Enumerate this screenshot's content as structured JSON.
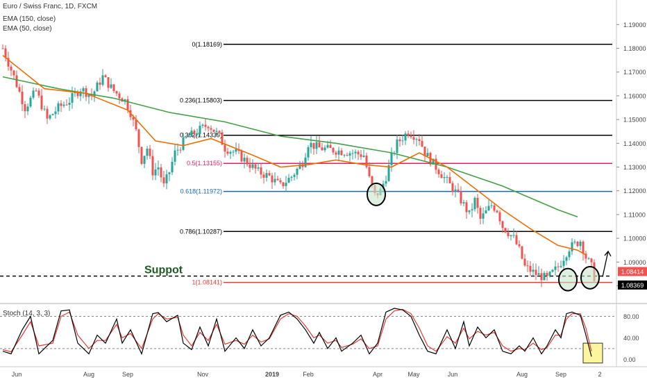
{
  "header": {
    "symbol_label": "Euro / Swiss Franc, 1D, FXCM",
    "ema150_label": "EMA (150, close)",
    "ema50_label": "EMA (50, close)",
    "stoch_label": "Stoch (14, 3, 3)"
  },
  "colors": {
    "candle_up": "#26a69a",
    "candle_down": "#ef5350",
    "ema150": "#43a047",
    "ema50": "#ef6c00",
    "fib_black": "#000000",
    "fib_pink": "#e91e63",
    "fib_blue": "#1565c0",
    "support_red": "#e53935",
    "stoch_k": "#000000",
    "stoch_d": "#e53935",
    "highlight_box": "#fff59d",
    "circle_fill": "#c8e6c9",
    "price_badge_red": "#ef5350",
    "price_badge_black": "#000000"
  },
  "annotations": {
    "support_label": "Suppot"
  },
  "chart_data": [
    {
      "type": "line",
      "title": "Euro / Swiss Franc, 1D, FXCM",
      "x_ticks": [
        "Jun",
        "Aug",
        "Sep",
        "Nov",
        "2019",
        "Feb",
        "Apr",
        "May",
        "Jun",
        "Aug",
        "Sep",
        "2"
      ],
      "y_ticks": [
        "1.19000",
        "1.18000",
        "1.17000",
        "1.16000",
        "1.15000",
        "1.14000",
        "1.13000",
        "1.12000",
        "1.11000",
        "1.10000",
        "1.09000",
        "1.08000"
      ],
      "ylim": [
        1.074,
        1.198
      ],
      "price_badges": [
        "1.08414",
        "1.08369"
      ],
      "fib_levels": [
        {
          "label": "0(1.18169)",
          "value": 1.18169,
          "color": "black"
        },
        {
          "label": "0.236(1.15803)",
          "value": 1.15803,
          "color": "black"
        },
        {
          "label": "0.382(1.14339)",
          "value": 1.14339,
          "color": "black"
        },
        {
          "label": "0.5(1.13155)",
          "value": 1.13155,
          "color": "pink"
        },
        {
          "label": "0.618(1.11972)",
          "value": 1.11972,
          "color": "blue"
        },
        {
          "label": "0.786(1.10287)",
          "value": 1.10287,
          "color": "black"
        },
        {
          "label": "1(1.08141)",
          "value": 1.08141,
          "color": "red"
        }
      ],
      "support_level": 1.0841,
      "series": [
        {
          "type": "candlestick",
          "close_path": [
            [
              0,
              1.18
            ],
            [
              4,
              1.168
            ],
            [
              8,
              1.155
            ],
            [
              12,
              1.162
            ],
            [
              16,
              1.15
            ],
            [
              20,
              1.155
            ],
            [
              24,
              1.158
            ],
            [
              28,
              1.163
            ],
            [
              32,
              1.16
            ],
            [
              36,
              1.168
            ],
            [
              40,
              1.162
            ],
            [
              44,
              1.158
            ],
            [
              46,
              1.153
            ],
            [
              48,
              1.145
            ],
            [
              50,
              1.133
            ],
            [
              52,
              1.138
            ],
            [
              54,
              1.128
            ],
            [
              56,
              1.13
            ],
            [
              58,
              1.122
            ],
            [
              60,
              1.128
            ],
            [
              62,
              1.136
            ],
            [
              66,
              1.142
            ],
            [
              70,
              1.145
            ],
            [
              74,
              1.148
            ],
            [
              78,
              1.143
            ],
            [
              80,
              1.138
            ],
            [
              84,
              1.136
            ],
            [
              88,
              1.132
            ],
            [
              92,
              1.128
            ],
            [
              96,
              1.126
            ],
            [
              100,
              1.122
            ],
            [
              104,
              1.126
            ],
            [
              108,
              1.132
            ],
            [
              110,
              1.14
            ],
            [
              114,
              1.138
            ],
            [
              120,
              1.137
            ],
            [
              126,
              1.136
            ],
            [
              130,
              1.135
            ],
            [
              132,
              1.125
            ],
            [
              134,
              1.118
            ],
            [
              136,
              1.12
            ],
            [
              138,
              1.126
            ],
            [
              140,
              1.134
            ],
            [
              142,
              1.14
            ],
            [
              146,
              1.145
            ],
            [
              150,
              1.142
            ],
            [
              152,
              1.136
            ],
            [
              156,
              1.13
            ],
            [
              160,
              1.124
            ],
            [
              164,
              1.118
            ],
            [
              168,
              1.11
            ],
            [
              170,
              1.116
            ],
            [
              172,
              1.108
            ],
            [
              176,
              1.114
            ],
            [
              178,
              1.112
            ],
            [
              180,
              1.105
            ],
            [
              184,
              1.1
            ],
            [
              186,
              1.095
            ],
            [
              188,
              1.088
            ],
            [
              192,
              1.085
            ],
            [
              196,
              1.083
            ],
            [
              200,
              1.088
            ],
            [
              204,
              1.096
            ],
            [
              208,
              1.099
            ],
            [
              210,
              1.092
            ],
            [
              212,
              1.088
            ],
            [
              213,
              1.0837
            ]
          ]
        },
        {
          "name": "EMA (150, close)",
          "points": [
            [
              0,
              1.168
            ],
            [
              20,
              1.163
            ],
            [
              40,
              1.159
            ],
            [
              60,
              1.153
            ],
            [
              80,
              1.149
            ],
            [
              100,
              1.143
            ],
            [
              120,
              1.14
            ],
            [
              140,
              1.136
            ],
            [
              160,
              1.13
            ],
            [
              180,
              1.122
            ],
            [
              200,
              1.112
            ],
            [
              207,
              1.109
            ]
          ]
        },
        {
          "name": "EMA (50, close)",
          "points": [
            [
              0,
              1.177
            ],
            [
              15,
              1.163
            ],
            [
              30,
              1.161
            ],
            [
              45,
              1.154
            ],
            [
              55,
              1.141
            ],
            [
              65,
              1.139
            ],
            [
              75,
              1.142
            ],
            [
              90,
              1.135
            ],
            [
              100,
              1.13
            ],
            [
              110,
              1.131
            ],
            [
              120,
              1.133
            ],
            [
              130,
              1.131
            ],
            [
              140,
              1.13
            ],
            [
              150,
              1.136
            ],
            [
              160,
              1.13
            ],
            [
              170,
              1.121
            ],
            [
              180,
              1.112
            ],
            [
              190,
              1.104
            ],
            [
              200,
              1.097
            ],
            [
              207,
              1.095
            ],
            [
              210,
              1.093
            ]
          ]
        }
      ]
    },
    {
      "type": "line",
      "title": "Stoch (14, 3, 3)",
      "y_ticks": [
        "80.00",
        "40.00",
        "0.00"
      ],
      "ylim": [
        -10,
        100
      ],
      "overbought": 80,
      "oversold": 20,
      "series": [
        {
          "name": "%K",
          "points": [
            [
              0,
              15
            ],
            [
              3,
              10
            ],
            [
              7,
              55
            ],
            [
              10,
              80
            ],
            [
              13,
              10
            ],
            [
              18,
              35
            ],
            [
              21,
              90
            ],
            [
              24,
              92
            ],
            [
              27,
              30
            ],
            [
              31,
              10
            ],
            [
              34,
              45
            ],
            [
              37,
              30
            ],
            [
              41,
              75
            ],
            [
              43,
              30
            ],
            [
              46,
              55
            ],
            [
              50,
              10
            ],
            [
              54,
              85
            ],
            [
              56,
              87
            ],
            [
              59,
              70
            ],
            [
              63,
              82
            ],
            [
              65,
              30
            ],
            [
              68,
              18
            ],
            [
              71,
              60
            ],
            [
              74,
              25
            ],
            [
              77,
              75
            ],
            [
              80,
              15
            ],
            [
              84,
              40
            ],
            [
              87,
              20
            ],
            [
              90,
              55
            ],
            [
              93,
              25
            ],
            [
              96,
              40
            ],
            [
              100,
              82
            ],
            [
              103,
              88
            ],
            [
              106,
              75
            ],
            [
              109,
              55
            ],
            [
              112,
              30
            ],
            [
              114,
              50
            ],
            [
              117,
              20
            ],
            [
              120,
              40
            ],
            [
              122,
              15
            ],
            [
              126,
              30
            ],
            [
              129,
              45
            ],
            [
              132,
              10
            ],
            [
              135,
              30
            ],
            [
              138,
              88
            ],
            [
              141,
              95
            ],
            [
              144,
              92
            ],
            [
              147,
              80
            ],
            [
              150,
              45
            ],
            [
              153,
              15
            ],
            [
              156,
              10
            ],
            [
              160,
              55
            ],
            [
              163,
              20
            ],
            [
              166,
              70
            ],
            [
              168,
              25
            ],
            [
              171,
              60
            ],
            [
              174,
              40
            ],
            [
              177,
              55
            ],
            [
              180,
              15
            ],
            [
              183,
              10
            ],
            [
              186,
              25
            ],
            [
              188,
              15
            ],
            [
              191,
              40
            ],
            [
              194,
              10
            ],
            [
              196,
              25
            ],
            [
              199,
              55
            ],
            [
              201,
              40
            ],
            [
              203,
              85
            ],
            [
              205,
              88
            ],
            [
              208,
              82
            ],
            [
              210,
              45
            ],
            [
              212,
              5
            ]
          ]
        },
        {
          "name": "%D",
          "points": [
            [
              0,
              18
            ],
            [
              3,
              14
            ],
            [
              7,
              45
            ],
            [
              10,
              70
            ],
            [
              13,
              25
            ],
            [
              18,
              30
            ],
            [
              21,
              80
            ],
            [
              24,
              88
            ],
            [
              27,
              45
            ],
            [
              31,
              20
            ],
            [
              34,
              35
            ],
            [
              37,
              35
            ],
            [
              41,
              65
            ],
            [
              43,
              40
            ],
            [
              46,
              48
            ],
            [
              50,
              20
            ],
            [
              54,
              75
            ],
            [
              56,
              85
            ],
            [
              59,
              75
            ],
            [
              63,
              78
            ],
            [
              65,
              45
            ],
            [
              68,
              25
            ],
            [
              71,
              50
            ],
            [
              74,
              35
            ],
            [
              77,
              65
            ],
            [
              80,
              28
            ],
            [
              84,
              35
            ],
            [
              87,
              28
            ],
            [
              90,
              45
            ],
            [
              93,
              32
            ],
            [
              96,
              38
            ],
            [
              100,
              75
            ],
            [
              103,
              85
            ],
            [
              106,
              80
            ],
            [
              109,
              62
            ],
            [
              112,
              40
            ],
            [
              114,
              45
            ],
            [
              117,
              30
            ],
            [
              120,
              35
            ],
            [
              122,
              22
            ],
            [
              126,
              28
            ],
            [
              129,
              38
            ],
            [
              132,
              20
            ],
            [
              135,
              25
            ],
            [
              138,
              75
            ],
            [
              141,
              90
            ],
            [
              144,
              93
            ],
            [
              147,
              85
            ],
            [
              150,
              58
            ],
            [
              153,
              25
            ],
            [
              156,
              15
            ],
            [
              160,
              42
            ],
            [
              163,
              30
            ],
            [
              166,
              58
            ],
            [
              168,
              38
            ],
            [
              171,
              52
            ],
            [
              174,
              45
            ],
            [
              177,
              50
            ],
            [
              180,
              25
            ],
            [
              183,
              15
            ],
            [
              186,
              20
            ],
            [
              188,
              18
            ],
            [
              191,
              30
            ],
            [
              194,
              18
            ],
            [
              196,
              22
            ],
            [
              199,
              45
            ],
            [
              201,
              45
            ],
            [
              203,
              75
            ],
            [
              205,
              85
            ],
            [
              208,
              85
            ],
            [
              210,
              58
            ],
            [
              212,
              15
            ]
          ]
        }
      ]
    }
  ]
}
